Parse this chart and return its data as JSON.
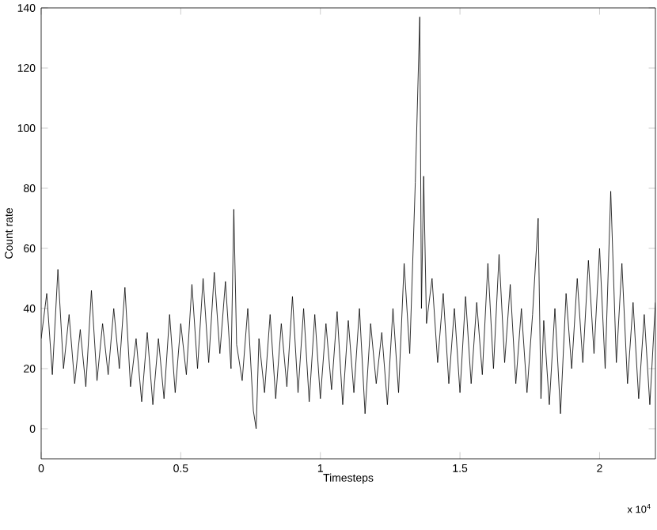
{
  "chart_data": {
    "type": "line",
    "xlabel": "Timesteps",
    "ylabel": "Count rate",
    "annotations": [
      "x 10$^{4}$"
    ],
    "xlim": [
      0,
      2.2
    ],
    "ylim": [
      -10,
      140
    ],
    "xticks": [
      0,
      0.5,
      1,
      1.5,
      2
    ],
    "yticks": [
      0,
      20,
      40,
      60,
      80,
      100,
      120,
      140
    ],
    "grid": false,
    "marker": "none",
    "line_style": "solid",
    "series": [
      {
        "color": "#000000",
        "x": [
          0,
          0.02,
          0.04,
          0.06,
          0.08,
          0.1,
          0.12,
          0.14,
          0.16,
          0.18,
          0.2,
          0.22,
          0.24,
          0.26,
          0.28,
          0.3,
          0.32,
          0.34,
          0.36,
          0.38,
          0.4,
          0.42,
          0.44,
          0.46,
          0.48,
          0.5,
          0.52,
          0.54,
          0.56,
          0.58,
          0.6,
          0.62,
          0.64,
          0.66,
          0.68,
          0.69,
          0.7,
          0.72,
          0.74,
          0.76,
          0.77,
          0.78,
          0.8,
          0.82,
          0.84,
          0.86,
          0.88,
          0.9,
          0.92,
          0.94,
          0.96,
          0.98,
          1.0,
          1.02,
          1.04,
          1.06,
          1.08,
          1.1,
          1.12,
          1.14,
          1.16,
          1.18,
          1.2,
          1.22,
          1.24,
          1.26,
          1.28,
          1.3,
          1.32,
          1.34,
          1.356,
          1.362,
          1.37,
          1.38,
          1.4,
          1.42,
          1.44,
          1.46,
          1.48,
          1.5,
          1.52,
          1.54,
          1.56,
          1.58,
          1.6,
          1.62,
          1.64,
          1.66,
          1.68,
          1.7,
          1.72,
          1.74,
          1.76,
          1.78,
          1.79,
          1.8,
          1.82,
          1.84,
          1.86,
          1.88,
          1.9,
          1.92,
          1.94,
          1.96,
          1.98,
          2.0,
          2.02,
          2.04,
          2.06,
          2.08,
          2.1,
          2.12,
          2.14,
          2.16,
          2.18,
          2.2
        ],
        "values": [
          30,
          45,
          18,
          53,
          20,
          38,
          15,
          33,
          14,
          46,
          16,
          35,
          18,
          40,
          20,
          47,
          14,
          30,
          9,
          32,
          8,
          30,
          10,
          38,
          12,
          35,
          18,
          48,
          20,
          50,
          22,
          52,
          25,
          49,
          20,
          73,
          28,
          16,
          40,
          6,
          0,
          30,
          12,
          38,
          10,
          35,
          14,
          44,
          12,
          40,
          9,
          38,
          10,
          35,
          13,
          39,
          8,
          36,
          12,
          40,
          5,
          35,
          15,
          32,
          8,
          40,
          12,
          55,
          25,
          82,
          137,
          40,
          84,
          35,
          50,
          22,
          45,
          15,
          40,
          12,
          44,
          15,
          42,
          18,
          55,
          20,
          58,
          22,
          48,
          15,
          40,
          12,
          38,
          70,
          10,
          36,
          8,
          40,
          5,
          45,
          20,
          50,
          22,
          56,
          25,
          60,
          20,
          79,
          22,
          55,
          15,
          42,
          10,
          38,
          8,
          42
        ]
      }
    ]
  }
}
